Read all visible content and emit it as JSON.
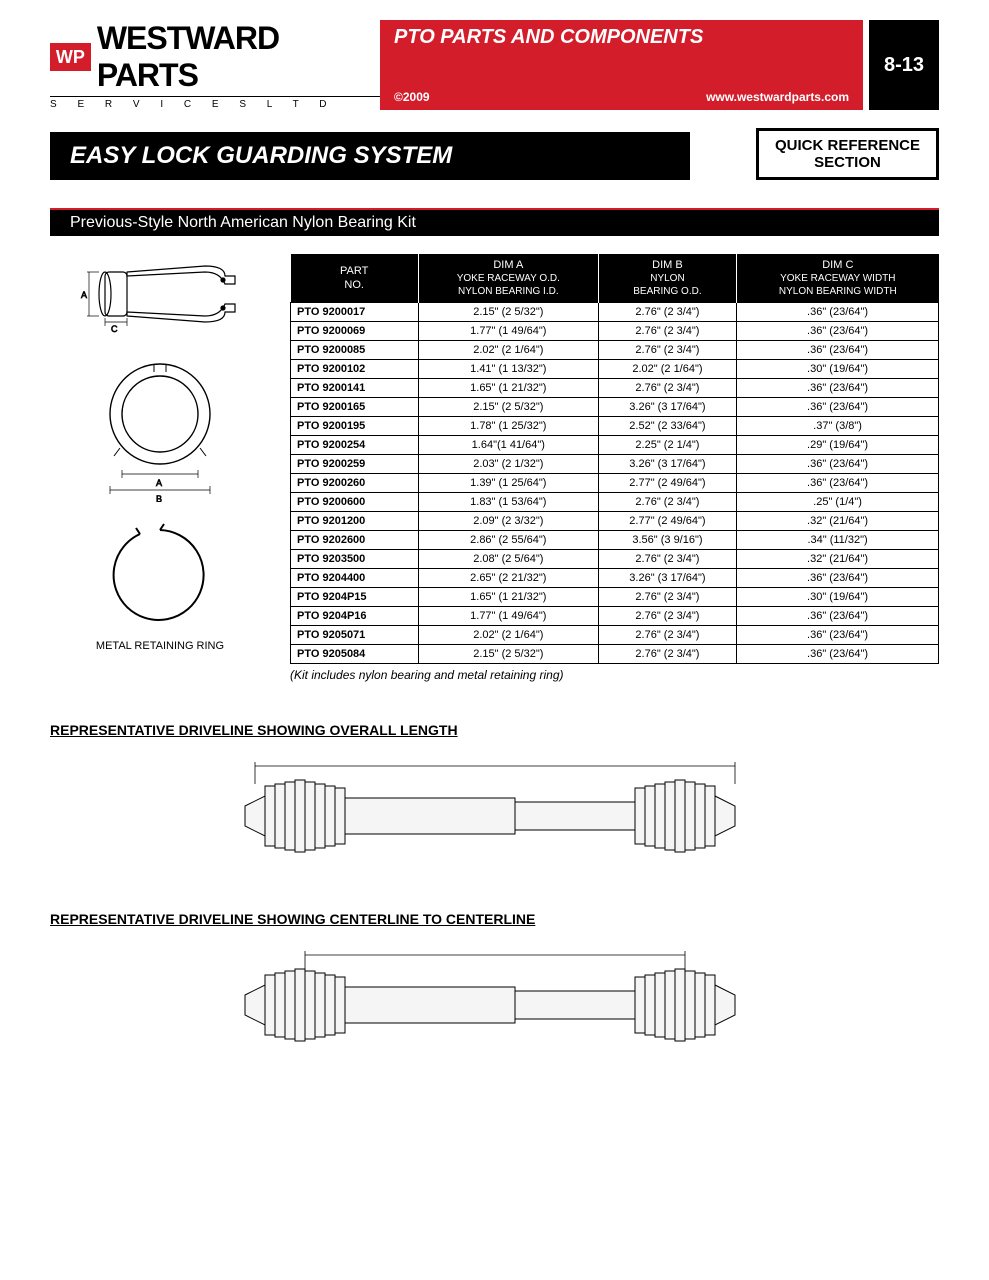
{
  "header": {
    "brand_mark": "WP",
    "brand": "WESTWARD PARTS",
    "brand_sub": "S E R V I C E S   L T D",
    "category": "PTO PARTS AND COMPONENTS",
    "copyright": "©2009",
    "url": "www.westwardparts.com",
    "page_no": "8-13",
    "red": "#d31d2b",
    "black": "#000000"
  },
  "section": {
    "title": "EASY LOCK GUARDING SYSTEM",
    "quick_ref_l1": "QUICK REFERENCE",
    "quick_ref_l2": "SECTION"
  },
  "subhead": "Previous-Style North American Nylon Bearing Kit",
  "diagram_label": "METAL RETAINING RING",
  "table": {
    "headers": {
      "col0_l1": "PART",
      "col0_l2": "NO.",
      "col1_l1": "DIM A",
      "col1_l2": "YOKE RACEWAY O.D.",
      "col1_l3": "NYLON BEARING I.D.",
      "col2_l1": "DIM B",
      "col2_l2": "NYLON",
      "col2_l3": "BEARING O.D.",
      "col3_l1": "DIM C",
      "col3_l2": "YOKE RACEWAY WIDTH",
      "col3_l3": "NYLON BEARING WIDTH"
    },
    "rows": [
      {
        "pn": "PTO 9200017",
        "a": "2.15\" (2 5/32\")",
        "b": "2.76\" (2 3/4\")",
        "c": ".36\" (23/64\")"
      },
      {
        "pn": "PTO 9200069",
        "a": "1.77\" (1 49/64\")",
        "b": "2.76\" (2 3/4\")",
        "c": ".36\" (23/64\")"
      },
      {
        "pn": "PTO 9200085",
        "a": "2.02\" (2 1/64\")",
        "b": "2.76\" (2 3/4\")",
        "c": ".36\" (23/64\")"
      },
      {
        "pn": "PTO 9200102",
        "a": "1.41\" (1 13/32\")",
        "b": "2.02\" (2 1/64\")",
        "c": ".30\" (19/64\")"
      },
      {
        "pn": "PTO 9200141",
        "a": "1.65\" (1 21/32\")",
        "b": "2.76\" (2 3/4\")",
        "c": ".36\" (23/64\")"
      },
      {
        "pn": "PTO 9200165",
        "a": "2.15\" (2 5/32\")",
        "b": "3.26\" (3 17/64\")",
        "c": ".36\" (23/64\")"
      },
      {
        "pn": "PTO 9200195",
        "a": "1.78\" (1 25/32\")",
        "b": "2.52\" (2 33/64\")",
        "c": ".37\" (3/8\")"
      },
      {
        "pn": "PTO 9200254",
        "a": "1.64\"(1 41/64\")",
        "b": "2.25\" (2 1/4\")",
        "c": ".29\" (19/64\")"
      },
      {
        "pn": "PTO 9200259",
        "a": "2.03\" (2 1/32\")",
        "b": "3.26\" (3 17/64\")",
        "c": ".36\" (23/64\")"
      },
      {
        "pn": "PTO 9200260",
        "a": "1.39\" (1 25/64\")",
        "b": "2.77\" (2 49/64\")",
        "c": ".36\" (23/64\")"
      },
      {
        "pn": "PTO 9200600",
        "a": "1.83\" (1 53/64\")",
        "b": "2.76\" (2 3/4\")",
        "c": ".25\" (1/4\")"
      },
      {
        "pn": "PTO 9201200",
        "a": "2.09\" (2 3/32\")",
        "b": "2.77\" (2 49/64\")",
        "c": ".32\" (21/64\")"
      },
      {
        "pn": "PTO 9202600",
        "a": "2.86\" (2 55/64\")",
        "b": "3.56\" (3 9/16\")",
        "c": ".34\" (11/32\")"
      },
      {
        "pn": "PTO 9203500",
        "a": "2.08\" (2 5/64\")",
        "b": "2.76\" (2 3/4\")",
        "c": ".32\" (21/64\")"
      },
      {
        "pn": "PTO 9204400",
        "a": "2.65\" (2 21/32\")",
        "b": "3.26\" (3 17/64\")",
        "c": ".36\" (23/64\")"
      },
      {
        "pn": "PTO 9204P15",
        "a": "1.65\" (1 21/32\")",
        "b": "2.76\" (2 3/4\")",
        "c": ".30\" (19/64\")"
      },
      {
        "pn": "PTO 9204P16",
        "a": "1.77\" (1 49/64\")",
        "b": "2.76\" (2 3/4\")",
        "c": ".36\" (23/64\")"
      },
      {
        "pn": "PTO 9205071",
        "a": "2.02\" (2 1/64\")",
        "b": "2.76\" (2 3/4\")",
        "c": ".36\" (23/64\")"
      },
      {
        "pn": "PTO 9205084",
        "a": "2.15\" (2 5/32\")",
        "b": "2.76\" (2 3/4\")",
        "c": ".36\" (23/64\")"
      }
    ],
    "note": "(Kit includes nylon bearing and metal retaining ring)"
  },
  "lower": {
    "title1": "REPRESENTATIVE DRIVELINE SHOWING OVERALL LENGTH",
    "title2": "REPRESENTATIVE DRIVELINE SHOWING CENTERLINE TO CENTERLINE"
  }
}
